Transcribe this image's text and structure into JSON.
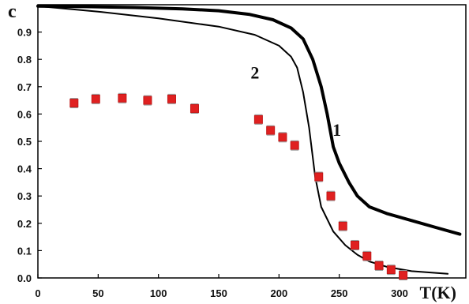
{
  "chart_data": {
    "type": "scatter",
    "title": "",
    "xlabel": "T(K)",
    "ylabel": "c",
    "xlim": [
      0,
      355
    ],
    "ylim": [
      0,
      1.0
    ],
    "x_ticks": [
      0,
      50,
      100,
      150,
      200,
      250,
      300
    ],
    "y_ticks": [
      0.0,
      0.1,
      0.2,
      0.3,
      0.4,
      0.5,
      0.6,
      0.7,
      0.8,
      0.9
    ],
    "grid": false,
    "series": [
      {
        "name": "1",
        "style": "thick-line",
        "color": "#000000",
        "x": [
          0,
          40,
          80,
          120,
          150,
          175,
          195,
          210,
          220,
          228,
          235,
          240,
          245,
          250,
          258,
          265,
          275,
          290,
          310,
          330,
          350
        ],
        "y": [
          0.995,
          0.993,
          0.99,
          0.985,
          0.978,
          0.965,
          0.945,
          0.915,
          0.875,
          0.8,
          0.7,
          0.6,
          0.48,
          0.42,
          0.35,
          0.3,
          0.26,
          0.235,
          0.21,
          0.185,
          0.16
        ]
      },
      {
        "name": "2",
        "style": "thin-line",
        "color": "#000000",
        "x": [
          0,
          50,
          100,
          150,
          180,
          200,
          210,
          215,
          220,
          225,
          230,
          235,
          245,
          255,
          265,
          275,
          290,
          310,
          340
        ],
        "y": [
          0.995,
          0.975,
          0.95,
          0.92,
          0.89,
          0.85,
          0.81,
          0.77,
          0.68,
          0.55,
          0.37,
          0.26,
          0.17,
          0.12,
          0.085,
          0.06,
          0.04,
          0.025,
          0.015
        ]
      },
      {
        "name": "",
        "style": "square-markers",
        "color": "#e02020",
        "x": [
          30,
          48,
          70,
          91,
          111,
          130,
          183,
          193,
          203,
          213,
          233,
          243,
          253,
          263,
          273,
          283,
          293,
          303
        ],
        "y": [
          0.64,
          0.655,
          0.658,
          0.65,
          0.655,
          0.62,
          0.58,
          0.54,
          0.515,
          0.485,
          0.37,
          0.3,
          0.19,
          0.12,
          0.08,
          0.045,
          0.03,
          0.01
        ]
      }
    ],
    "curve_labels": [
      {
        "text": "1",
        "x": 248,
        "y": 0.52
      },
      {
        "text": "2",
        "x": 180,
        "y": 0.73
      }
    ],
    "colors": {
      "axis": "#000000",
      "marker_fill": "#e02020",
      "marker_edge": "#c21818"
    }
  }
}
